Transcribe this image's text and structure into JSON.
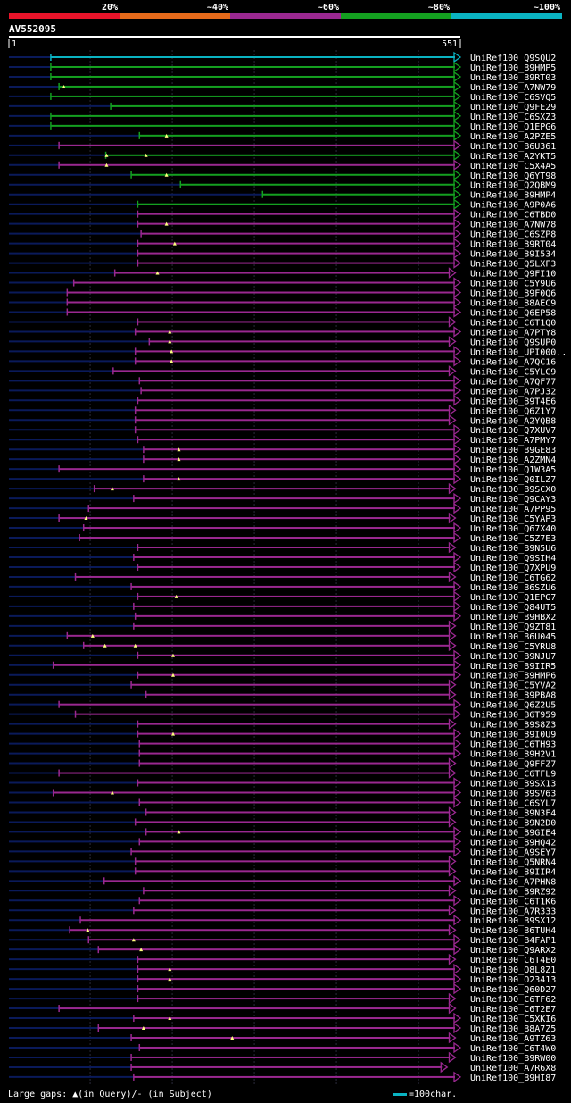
{
  "chart_data": {
    "type": "bar",
    "title": "AV552095",
    "query_range": [
      1,
      551
    ],
    "query_start_label": "1",
    "query_end_label": "551",
    "color_legend": [
      {
        "label": "20%",
        "color": "#e8142a"
      },
      {
        "label": "~40%",
        "color": "#e66a1a"
      },
      {
        "label": "~60%",
        "color": "#9a2890"
      },
      {
        "label": "~80%",
        "color": "#14a020"
      },
      {
        "label": "~100%",
        "color": "#0ab3c2"
      }
    ],
    "hits": [
      {
        "name": "UniRef100_Q9SQU2",
        "start": 52,
        "end": 551,
        "color": "cyan",
        "gaps": []
      },
      {
        "name": "UniRef100_B9HMP5",
        "start": 52,
        "end": 551,
        "color": "green",
        "gaps": []
      },
      {
        "name": "UniRef100_B9RT03",
        "start": 52,
        "end": 551,
        "color": "green",
        "gaps": []
      },
      {
        "name": "UniRef100_A7NW79",
        "start": 62,
        "end": 551,
        "color": "green",
        "gaps": [
          68
        ]
      },
      {
        "name": "UniRef100_C6SVQ5",
        "start": 52,
        "end": 551,
        "color": "green",
        "gaps": []
      },
      {
        "name": "UniRef100_Q9FE29",
        "start": 125,
        "end": 551,
        "color": "green",
        "gaps": []
      },
      {
        "name": "UniRef100_C6SXZ3",
        "start": 52,
        "end": 551,
        "color": "green",
        "gaps": []
      },
      {
        "name": "UniRef100_Q1EPG6",
        "start": 52,
        "end": 551,
        "color": "green",
        "gaps": []
      },
      {
        "name": "UniRef100_A2PZE5",
        "start": 160,
        "end": 551,
        "color": "green",
        "gaps": [
          193
        ]
      },
      {
        "name": "UniRef100_B6U361",
        "start": 62,
        "end": 551,
        "color": "purple",
        "gaps": []
      },
      {
        "name": "UniRef100_A2YKT5",
        "start": 119,
        "end": 551,
        "color": "green",
        "gaps": [
          120,
          168
        ]
      },
      {
        "name": "UniRef100_C5X4A5",
        "start": 62,
        "end": 551,
        "color": "purple",
        "gaps": [
          120
        ]
      },
      {
        "name": "UniRef100_Q6YT98",
        "start": 150,
        "end": 551,
        "color": "green",
        "gaps": [
          193
        ]
      },
      {
        "name": "UniRef100_Q2QBM9",
        "start": 210,
        "end": 551,
        "color": "green",
        "gaps": []
      },
      {
        "name": "UniRef100_B9HMP4",
        "start": 310,
        "end": 551,
        "color": "green",
        "gaps": []
      },
      {
        "name": "UniRef100_A9P0A6",
        "start": 158,
        "end": 551,
        "color": "green",
        "gaps": []
      },
      {
        "name": "UniRef100_C6TBD0",
        "start": 158,
        "end": 551,
        "color": "purple",
        "gaps": []
      },
      {
        "name": "UniRef100_A7NW78",
        "start": 158,
        "end": 551,
        "color": "purple",
        "gaps": [
          193
        ]
      },
      {
        "name": "UniRef100_C6SZP8",
        "start": 162,
        "end": 551,
        "color": "purple",
        "gaps": []
      },
      {
        "name": "UniRef100_B9RT04",
        "start": 158,
        "end": 551,
        "color": "purple",
        "gaps": [
          203
        ]
      },
      {
        "name": "UniRef100_B9I534",
        "start": 158,
        "end": 551,
        "color": "purple",
        "gaps": []
      },
      {
        "name": "UniRef100_Q5LXF3",
        "start": 158,
        "end": 551,
        "color": "purple",
        "gaps": []
      },
      {
        "name": "UniRef100_Q9FI10",
        "start": 130,
        "end": 545,
        "color": "purple",
        "gaps": [
          182
        ]
      },
      {
        "name": "UniRef100_C5Y9U6",
        "start": 80,
        "end": 551,
        "color": "purple",
        "gaps": []
      },
      {
        "name": "UniRef100_B9F0Q6",
        "start": 72,
        "end": 551,
        "color": "purple",
        "gaps": []
      },
      {
        "name": "UniRef100_B8AEC9",
        "start": 72,
        "end": 551,
        "color": "purple",
        "gaps": []
      },
      {
        "name": "UniRef100_Q6EP58",
        "start": 72,
        "end": 551,
        "color": "purple",
        "gaps": []
      },
      {
        "name": "UniRef100_C6T1Q0",
        "start": 158,
        "end": 545,
        "color": "purple",
        "gaps": []
      },
      {
        "name": "UniRef100_A7PTY8",
        "start": 155,
        "end": 551,
        "color": "purple",
        "gaps": [
          197
        ]
      },
      {
        "name": "UniRef100_Q9SUP0",
        "start": 172,
        "end": 545,
        "color": "purple",
        "gaps": [
          197
        ]
      },
      {
        "name": "UniRef100_UPI000..",
        "start": 155,
        "end": 551,
        "color": "purple",
        "gaps": [
          199
        ]
      },
      {
        "name": "UniRef100_A7QC16",
        "start": 155,
        "end": 551,
        "color": "purple",
        "gaps": [
          199
        ]
      },
      {
        "name": "UniRef100_C5YLC9",
        "start": 128,
        "end": 545,
        "color": "purple",
        "gaps": []
      },
      {
        "name": "UniRef100_A7QF77",
        "start": 160,
        "end": 551,
        "color": "purple",
        "gaps": []
      },
      {
        "name": "UniRef100_A7PJ32",
        "start": 162,
        "end": 551,
        "color": "purple",
        "gaps": []
      },
      {
        "name": "UniRef100_B9T4E6",
        "start": 158,
        "end": 551,
        "color": "purple",
        "gaps": []
      },
      {
        "name": "UniRef100_Q6Z1Y7",
        "start": 155,
        "end": 545,
        "color": "purple",
        "gaps": []
      },
      {
        "name": "UniRef100_A2YQB8",
        "start": 155,
        "end": 545,
        "color": "purple",
        "gaps": []
      },
      {
        "name": "UniRef100_Q7XUV7",
        "start": 155,
        "end": 551,
        "color": "purple",
        "gaps": []
      },
      {
        "name": "UniRef100_A7PMY7",
        "start": 158,
        "end": 551,
        "color": "purple",
        "gaps": []
      },
      {
        "name": "UniRef100_B9GE83",
        "start": 165,
        "end": 551,
        "color": "purple",
        "gaps": [
          208
        ]
      },
      {
        "name": "UniRef100_A2ZMN4",
        "start": 165,
        "end": 551,
        "color": "purple",
        "gaps": [
          208
        ]
      },
      {
        "name": "UniRef100_Q1W3A5",
        "start": 62,
        "end": 551,
        "color": "purple",
        "gaps": []
      },
      {
        "name": "UniRef100_Q0ILZ7",
        "start": 165,
        "end": 551,
        "color": "purple",
        "gaps": [
          208
        ]
      },
      {
        "name": "UniRef100_B9SCX0",
        "start": 105,
        "end": 545,
        "color": "purple",
        "gaps": [
          127
        ]
      },
      {
        "name": "UniRef100_Q9CAY3",
        "start": 153,
        "end": 551,
        "color": "purple",
        "gaps": []
      },
      {
        "name": "UniRef100_A7PP95",
        "start": 98,
        "end": 551,
        "color": "purple",
        "gaps": []
      },
      {
        "name": "UniRef100_C5YAP3",
        "start": 62,
        "end": 545,
        "color": "purple",
        "gaps": [
          95
        ]
      },
      {
        "name": "UniRef100_Q67X40",
        "start": 92,
        "end": 551,
        "color": "purple",
        "gaps": []
      },
      {
        "name": "UniRef100_C5Z7E3",
        "start": 87,
        "end": 551,
        "color": "purple",
        "gaps": []
      },
      {
        "name": "UniRef100_B9N5U6",
        "start": 158,
        "end": 545,
        "color": "purple",
        "gaps": []
      },
      {
        "name": "UniRef100_Q9SIH4",
        "start": 153,
        "end": 551,
        "color": "purple",
        "gaps": []
      },
      {
        "name": "UniRef100_Q7XPU9",
        "start": 158,
        "end": 551,
        "color": "purple",
        "gaps": []
      },
      {
        "name": "UniRef100_C6TG62",
        "start": 82,
        "end": 545,
        "color": "purple",
        "gaps": []
      },
      {
        "name": "UniRef100_B6SZU6",
        "start": 150,
        "end": 551,
        "color": "purple",
        "gaps": []
      },
      {
        "name": "UniRef100_Q1EPG7",
        "start": 158,
        "end": 551,
        "color": "purple",
        "gaps": [
          205
        ]
      },
      {
        "name": "UniRef100_Q84UT5",
        "start": 153,
        "end": 551,
        "color": "purple",
        "gaps": []
      },
      {
        "name": "UniRef100_B9HBX2",
        "start": 155,
        "end": 551,
        "color": "purple",
        "gaps": []
      },
      {
        "name": "UniRef100_Q9ZT81",
        "start": 153,
        "end": 545,
        "color": "purple",
        "gaps": []
      },
      {
        "name": "UniRef100_B6U045",
        "start": 72,
        "end": 545,
        "color": "purple",
        "gaps": [
          103
        ]
      },
      {
        "name": "UniRef100_C5YRU8",
        "start": 92,
        "end": 545,
        "color": "purple",
        "gaps": [
          118,
          155
        ]
      },
      {
        "name": "UniRef100_B9NJU7",
        "start": 158,
        "end": 551,
        "color": "purple",
        "gaps": [
          201
        ]
      },
      {
        "name": "UniRef100_B9IIR5",
        "start": 55,
        "end": 551,
        "color": "purple",
        "gaps": []
      },
      {
        "name": "UniRef100_B9HMP6",
        "start": 158,
        "end": 551,
        "color": "purple",
        "gaps": [
          201
        ]
      },
      {
        "name": "UniRef100_C5YVA2",
        "start": 150,
        "end": 545,
        "color": "purple",
        "gaps": []
      },
      {
        "name": "UniRef100_B9PBA8",
        "start": 168,
        "end": 545,
        "color": "purple",
        "gaps": []
      },
      {
        "name": "UniRef100_Q6Z2U5",
        "start": 62,
        "end": 551,
        "color": "purple",
        "gaps": []
      },
      {
        "name": "UniRef100_B6T959",
        "start": 82,
        "end": 551,
        "color": "purple",
        "gaps": []
      },
      {
        "name": "UniRef100_B9S8Z3",
        "start": 158,
        "end": 545,
        "color": "purple",
        "gaps": []
      },
      {
        "name": "UniRef100_B9I0U9",
        "start": 158,
        "end": 551,
        "color": "purple",
        "gaps": [
          201
        ]
      },
      {
        "name": "UniRef100_C6TH93",
        "start": 160,
        "end": 551,
        "color": "purple",
        "gaps": []
      },
      {
        "name": "UniRef100_B9H2V1",
        "start": 160,
        "end": 551,
        "color": "purple",
        "gaps": []
      },
      {
        "name": "UniRef100_Q9FFZ7",
        "start": 160,
        "end": 545,
        "color": "purple",
        "gaps": []
      },
      {
        "name": "UniRef100_C6TFL9",
        "start": 62,
        "end": 545,
        "color": "purple",
        "gaps": []
      },
      {
        "name": "UniRef100_B9SX13",
        "start": 158,
        "end": 551,
        "color": "purple",
        "gaps": []
      },
      {
        "name": "UniRef100_B9SV63",
        "start": 55,
        "end": 551,
        "color": "purple",
        "gaps": [
          127
        ]
      },
      {
        "name": "UniRef100_C6SYL7",
        "start": 160,
        "end": 551,
        "color": "purple",
        "gaps": []
      },
      {
        "name": "UniRef100_B9N3F4",
        "start": 168,
        "end": 545,
        "color": "purple",
        "gaps": []
      },
      {
        "name": "UniRef100_B9N2D0",
        "start": 155,
        "end": 545,
        "color": "purple",
        "gaps": []
      },
      {
        "name": "UniRef100_B9GIE4",
        "start": 168,
        "end": 551,
        "color": "purple",
        "gaps": [
          208
        ]
      },
      {
        "name": "UniRef100_B9HQ42",
        "start": 160,
        "end": 551,
        "color": "purple",
        "gaps": []
      },
      {
        "name": "UniRef100_A9SEY7",
        "start": 150,
        "end": 551,
        "color": "purple",
        "gaps": []
      },
      {
        "name": "UniRef100_Q5NRN4",
        "start": 155,
        "end": 545,
        "color": "purple",
        "gaps": []
      },
      {
        "name": "UniRef100_B9IIR4",
        "start": 155,
        "end": 545,
        "color": "purple",
        "gaps": []
      },
      {
        "name": "UniRef100_A7PHN8",
        "start": 117,
        "end": 551,
        "color": "purple",
        "gaps": []
      },
      {
        "name": "UniRef100_B9RZ92",
        "start": 165,
        "end": 545,
        "color": "purple",
        "gaps": []
      },
      {
        "name": "UniRef100_C6T1K6",
        "start": 160,
        "end": 551,
        "color": "purple",
        "gaps": []
      },
      {
        "name": "UniRef100_A7R333",
        "start": 153,
        "end": 545,
        "color": "purple",
        "gaps": []
      },
      {
        "name": "UniRef100_B9SX12",
        "start": 88,
        "end": 551,
        "color": "purple",
        "gaps": []
      },
      {
        "name": "UniRef100_B6TUH4",
        "start": 75,
        "end": 545,
        "color": "purple",
        "gaps": [
          97
        ]
      },
      {
        "name": "UniRef100_B4FAP1",
        "start": 98,
        "end": 551,
        "color": "purple",
        "gaps": [
          153
        ]
      },
      {
        "name": "UniRef100_Q9ARX2",
        "start": 110,
        "end": 551,
        "color": "purple",
        "gaps": [
          162
        ]
      },
      {
        "name": "UniRef100_C6T4E0",
        "start": 158,
        "end": 545,
        "color": "purple",
        "gaps": []
      },
      {
        "name": "UniRef100_Q8L8Z1",
        "start": 158,
        "end": 551,
        "color": "purple",
        "gaps": [
          197
        ]
      },
      {
        "name": "UniRef100_O23413",
        "start": 158,
        "end": 551,
        "color": "purple",
        "gaps": [
          197
        ]
      },
      {
        "name": "UniRef100_Q60D27",
        "start": 158,
        "end": 551,
        "color": "purple",
        "gaps": []
      },
      {
        "name": "UniRef100_C6TF62",
        "start": 158,
        "end": 545,
        "color": "purple",
        "gaps": []
      },
      {
        "name": "UniRef100_C6T2E7",
        "start": 62,
        "end": 545,
        "color": "purple",
        "gaps": []
      },
      {
        "name": "UniRef100_C5XKI6",
        "start": 153,
        "end": 551,
        "color": "purple",
        "gaps": [
          197
        ]
      },
      {
        "name": "UniRef100_B8A7Z5",
        "start": 110,
        "end": 551,
        "color": "purple",
        "gaps": [
          165
        ]
      },
      {
        "name": "UniRef100_A9TZ63",
        "start": 150,
        "end": 545,
        "color": "purple",
        "gaps": [
          273
        ]
      },
      {
        "name": "UniRef100_C6T4W0",
        "start": 160,
        "end": 551,
        "color": "purple",
        "gaps": []
      },
      {
        "name": "UniRef100_B9RW00",
        "start": 150,
        "end": 545,
        "color": "purple",
        "gaps": []
      },
      {
        "name": "UniRef100_A7R6X8",
        "start": 150,
        "end": 535,
        "color": "purple",
        "gaps": []
      },
      {
        "name": "UniRef100_B9HI87",
        "start": 153,
        "end": 551,
        "color": "purple",
        "gaps": []
      }
    ]
  },
  "footer": {
    "gaps_legend": "Large gaps: ▲(in Query)/- (in Subject)",
    "scale_label": "=100char."
  }
}
